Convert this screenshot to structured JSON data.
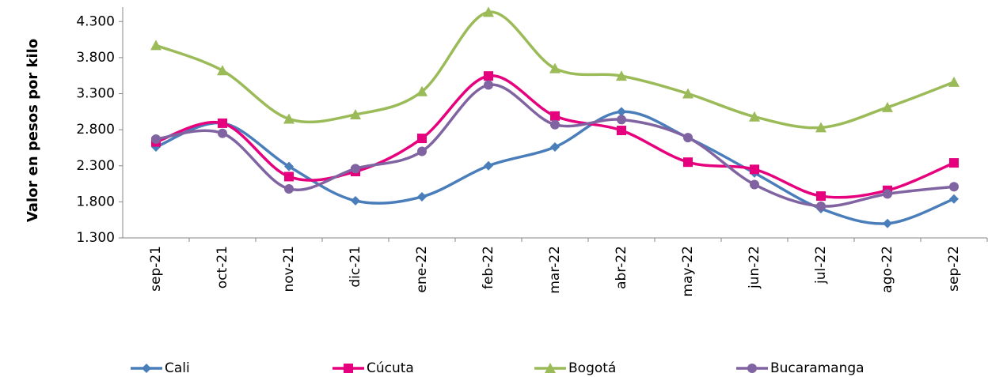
{
  "chart_data": {
    "type": "line",
    "y_label": "Valor en pesos por kilo",
    "categories": [
      "sep-21",
      "oct-21",
      "nov-21",
      "dic-21",
      "ene-22",
      "feb-22",
      "mar-22",
      "abr-22",
      "may-22",
      "jun-22",
      "jul-22",
      "ago-22",
      "sep-22"
    ],
    "series": [
      {
        "name": "Cali",
        "color": "#4a7ebb",
        "marker": "diamond",
        "values": [
          2560,
          2890,
          2290,
          1815,
          1870,
          2300,
          2560,
          3050,
          2690,
          2200,
          1705,
          1500,
          1840
        ]
      },
      {
        "name": "Cúcuta",
        "color": "#e6007e",
        "marker": "square",
        "values": [
          2630,
          2890,
          2150,
          2220,
          2680,
          3545,
          2990,
          2790,
          2350,
          2250,
          1880,
          1960,
          2340
        ]
      },
      {
        "name": "Bogotá",
        "color": "#9bbb59",
        "marker": "triangle",
        "values": [
          3970,
          3620,
          2950,
          3010,
          3330,
          4430,
          3650,
          3545,
          3300,
          2980,
          2830,
          3110,
          3460
        ]
      },
      {
        "name": "Bucaramanga",
        "color": "#8064a2",
        "marker": "circle",
        "values": [
          2670,
          2750,
          1980,
          2260,
          2500,
          3420,
          2870,
          2940,
          2690,
          2040,
          1740,
          1910,
          2010
        ]
      }
    ],
    "ylim": [
      1300,
      4500
    ],
    "yticks": [
      {
        "value": 1300,
        "label": "1.300"
      },
      {
        "value": 1800,
        "label": "1.800"
      },
      {
        "value": 2300,
        "label": "2.300"
      },
      {
        "value": 2800,
        "label": "2.800"
      },
      {
        "value": 3300,
        "label": "3.300"
      },
      {
        "value": 3800,
        "label": "3.800"
      },
      {
        "value": 4300,
        "label": "4.300"
      }
    ],
    "grid": false,
    "smooth": true,
    "legend": "bottom"
  }
}
